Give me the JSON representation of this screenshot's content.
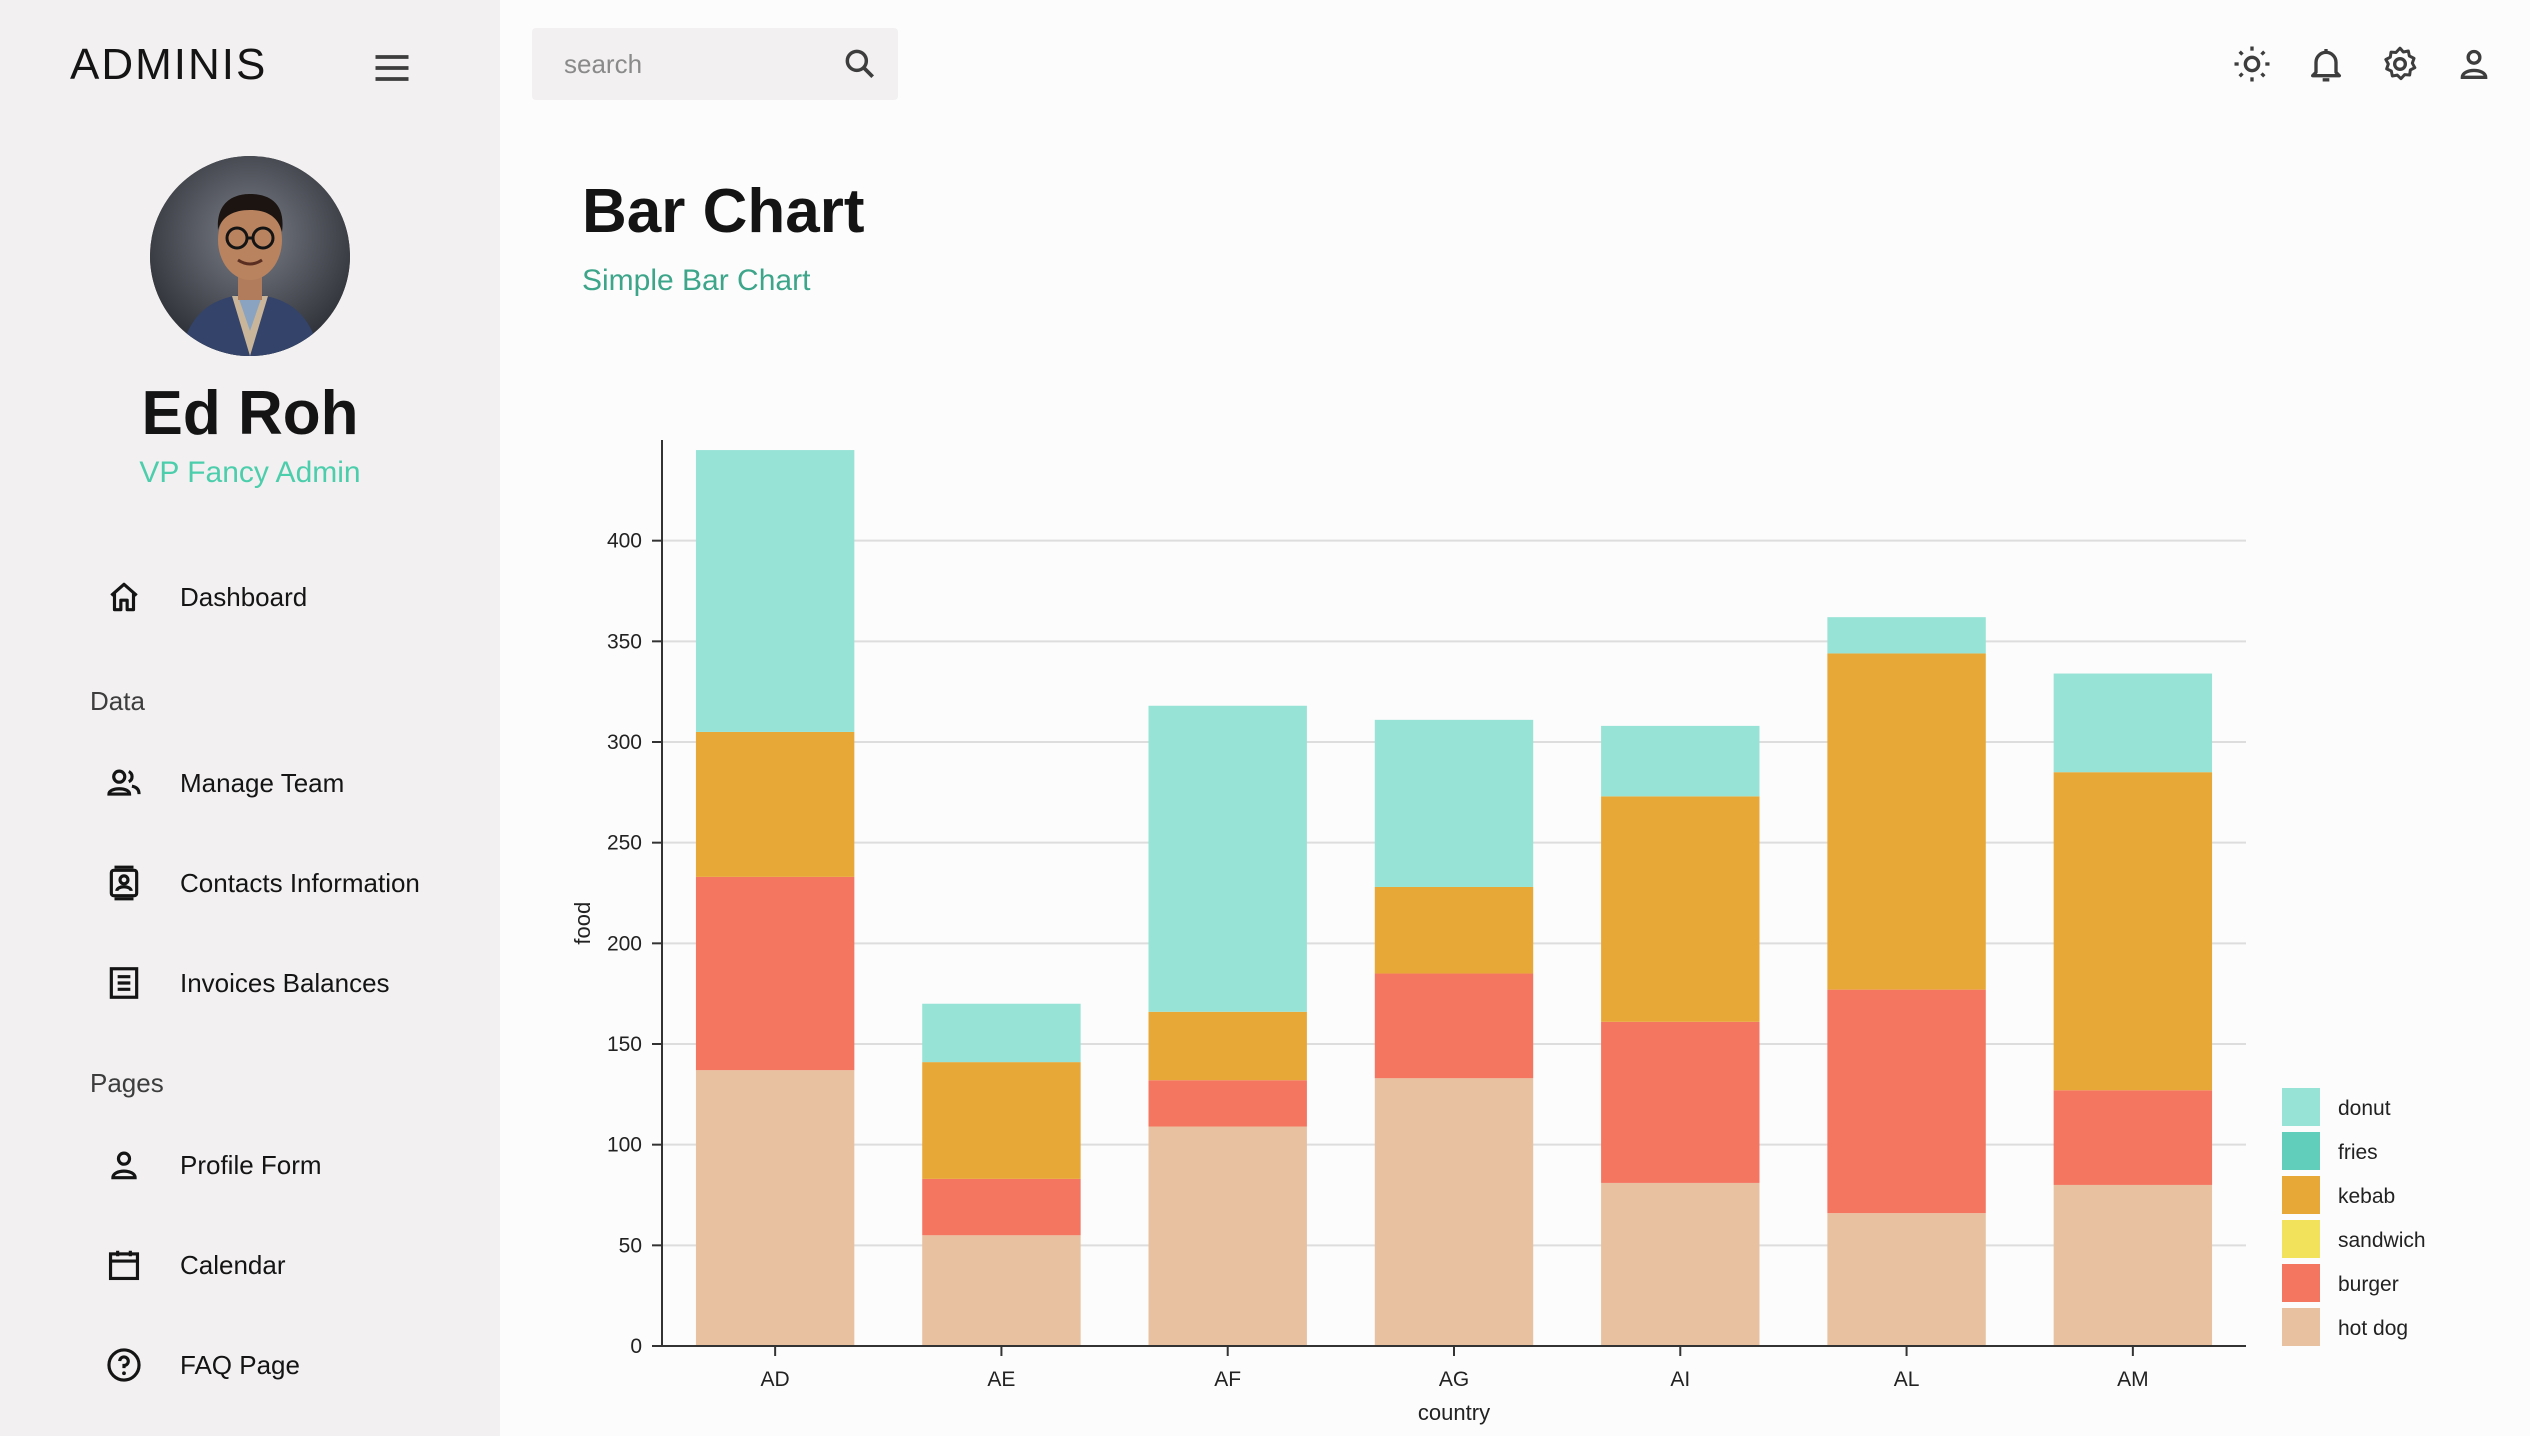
{
  "sidebar": {
    "brand": "ADMINIS",
    "user": {
      "name": "Ed Roh",
      "role": "VP Fancy Admin"
    },
    "items": [
      {
        "label": "Dashboard",
        "icon": "home-icon"
      },
      {
        "section": "Data"
      },
      {
        "label": "Manage Team",
        "icon": "team-icon"
      },
      {
        "label": "Contacts Information",
        "icon": "contacts-icon"
      },
      {
        "label": "Invoices Balances",
        "icon": "invoice-icon"
      },
      {
        "section": "Pages"
      },
      {
        "label": "Profile Form",
        "icon": "person-icon"
      },
      {
        "label": "Calendar",
        "icon": "calendar-icon"
      },
      {
        "label": "FAQ Page",
        "icon": "help-icon"
      }
    ]
  },
  "topbar": {
    "search": {
      "placeholder": "search",
      "value": ""
    },
    "icons": [
      "light-mode-icon",
      "notifications-icon",
      "settings-icon",
      "user-icon"
    ]
  },
  "header": {
    "title": "Bar Chart",
    "subtitle": "Simple Bar Chart"
  },
  "chart_data": {
    "type": "bar",
    "stacked": true,
    "categories": [
      "AD",
      "AE",
      "AF",
      "AG",
      "AI",
      "AL",
      "AM"
    ],
    "xlabel": "country",
    "ylabel": "food",
    "ylim": [
      0,
      450
    ],
    "yticks": [
      0,
      50,
      100,
      150,
      200,
      250,
      300,
      350,
      400
    ],
    "grid": true,
    "legend_position": "bottom-right",
    "legend_order": [
      "donut",
      "fries",
      "kebab",
      "sandwich",
      "burger",
      "hot dog"
    ],
    "series": [
      {
        "name": "hot dog",
        "color": "#e8c1a0",
        "values": [
          137,
          55,
          109,
          133,
          81,
          66,
          80
        ]
      },
      {
        "name": "burger",
        "color": "#f47560",
        "values": [
          96,
          28,
          23,
          52,
          80,
          111,
          47
        ]
      },
      {
        "name": "sandwich",
        "color": "#f1e15b",
        "values": [
          0,
          0,
          0,
          0,
          0,
          0,
          0
        ]
      },
      {
        "name": "kebab",
        "color": "#e8a838",
        "values": [
          72,
          58,
          34,
          43,
          112,
          167,
          158
        ]
      },
      {
        "name": "fries",
        "color": "#61cdbb",
        "values": [
          0,
          0,
          0,
          0,
          0,
          0,
          0
        ]
      },
      {
        "name": "donut",
        "color": "#97e3d5",
        "values": [
          140,
          29,
          152,
          83,
          35,
          18,
          49
        ]
      }
    ]
  }
}
